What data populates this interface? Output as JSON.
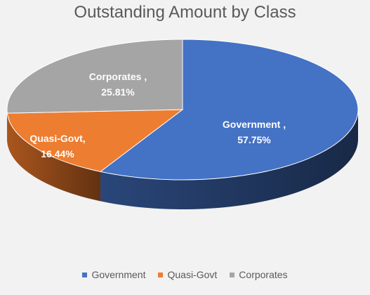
{
  "chart_data": {
    "type": "pie",
    "title": "Outstanding Amount by Class",
    "series": [
      {
        "name": "Government",
        "value": 57.75,
        "label": "Government ,",
        "percent": "57.75%",
        "color": "#4472c4",
        "side_color": "#2c4a80"
      },
      {
        "name": "Quasi-Govt",
        "value": 16.44,
        "label": "Quasi-Govt,",
        "percent": "16.44%",
        "color": "#ed7d31",
        "side_color": "#b35a1f"
      },
      {
        "name": "Corporates",
        "value": 25.81,
        "label": "Corporates ,",
        "percent": "25.81%",
        "color": "#a5a5a5",
        "side_color": "#7a7a7a"
      }
    ],
    "legend_position": "bottom",
    "style": "3d"
  }
}
